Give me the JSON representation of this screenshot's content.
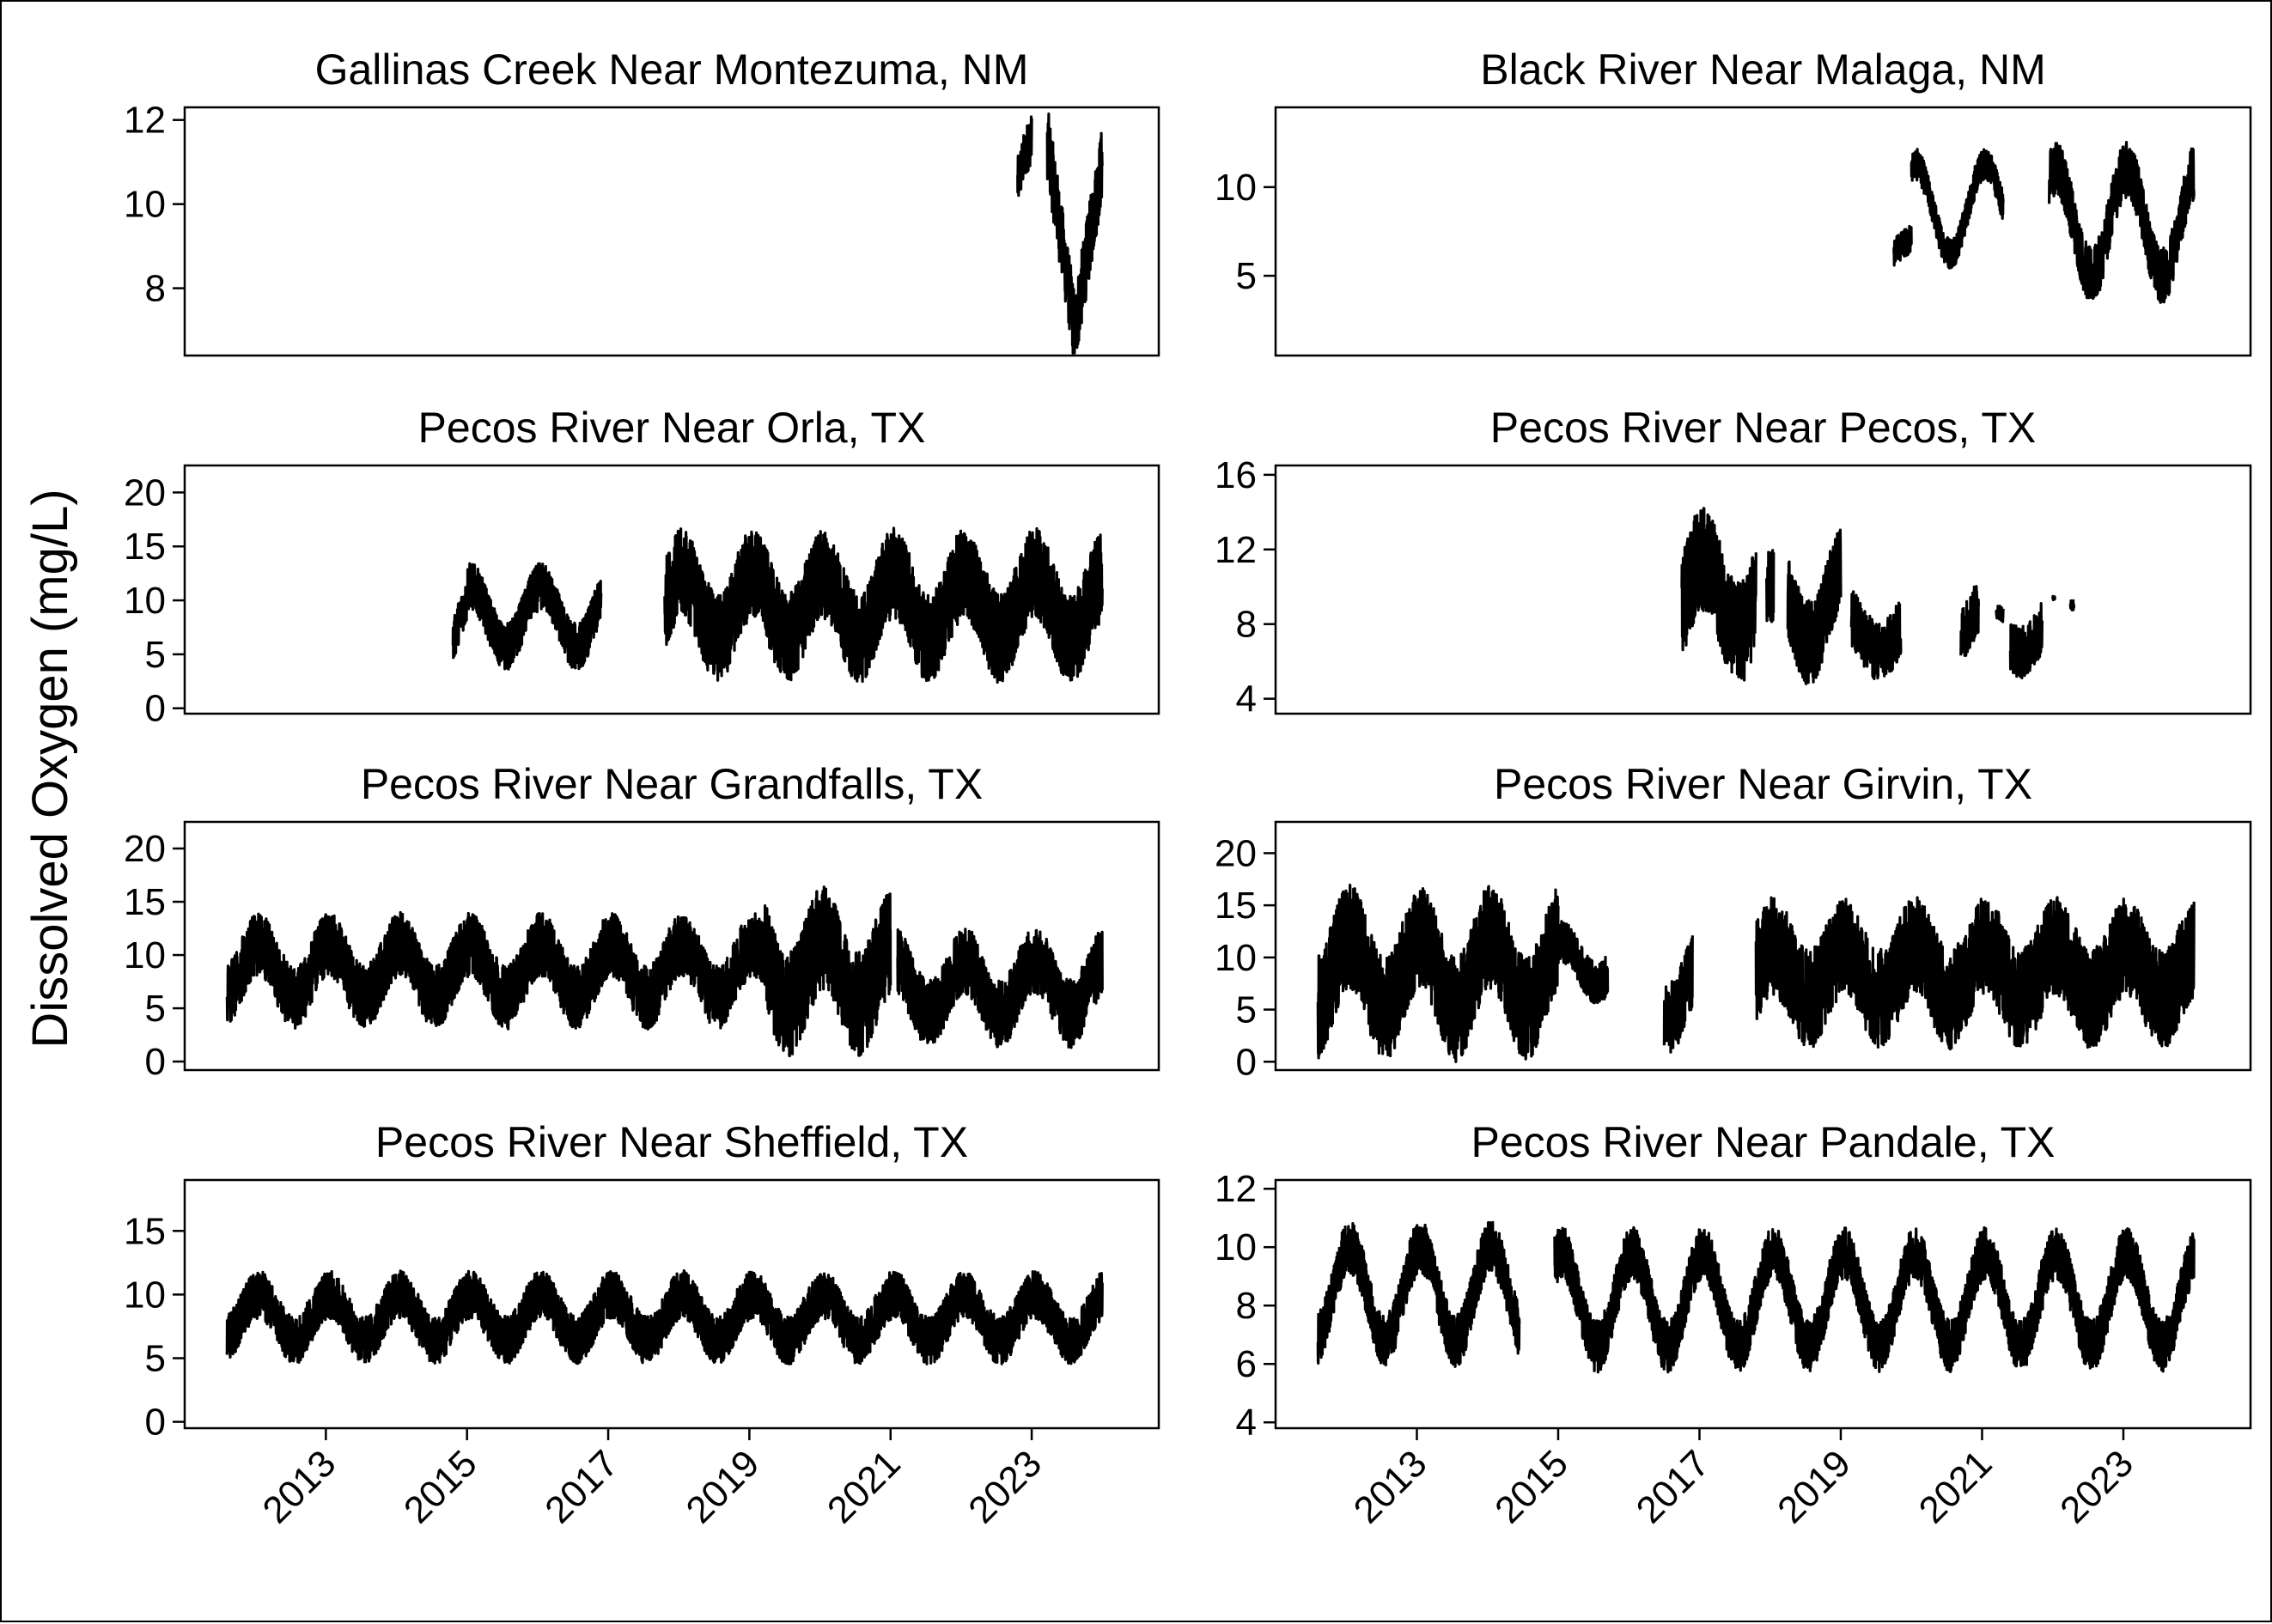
{
  "figure": {
    "ylabel": "Dissolved Oxygen (mg/L)",
    "x_tick_labels": [
      "2013",
      "2015",
      "2017",
      "2019",
      "2021",
      "2023"
    ]
  },
  "chart_data": [
    {
      "type": "line",
      "title": "Gallinas Creek Near Montezuma, NM",
      "ylim": [
        6.4,
        12.3
      ],
      "yticks": [
        8,
        10,
        12
      ],
      "xlim": [
        2011.0,
        2024.8
      ],
      "color": "#000000",
      "segments": [
        {
          "start": 2022.8,
          "end": 2023.0,
          "mean": 10.5,
          "amp": 1.1,
          "noise": 0.6
        },
        {
          "start": 2023.22,
          "end": 2024.0,
          "mean": 9.6,
          "amp": 1.9,
          "noise": 0.9,
          "trend": [
            11.5,
            7.0,
            11.0
          ]
        }
      ]
    },
    {
      "type": "line",
      "title": "Black River Near Malaga, NM",
      "ylim": [
        0.5,
        14.5
      ],
      "yticks": [
        5,
        10
      ],
      "xlim": [
        2011.0,
        2024.8
      ],
      "color": "#000000",
      "segments": [
        {
          "start": 2019.75,
          "end": 2020.0,
          "mean": 6.5,
          "amp": 0.6,
          "noise": 0.8
        },
        {
          "start": 2020.0,
          "end": 2021.3,
          "mean": 8.8,
          "amp": 2.5,
          "noise": 0.9
        },
        {
          "start": 2021.95,
          "end": 2024.0,
          "mean": 8.0,
          "amp": 3.0,
          "noise": 1.6
        }
      ]
    },
    {
      "type": "line",
      "title": "Pecos River Near Orla, TX",
      "ylim": [
        -0.5,
        22.5
      ],
      "yticks": [
        0,
        5,
        10,
        15,
        20
      ],
      "xlim": [
        2011.0,
        2024.8
      ],
      "color": "#000000",
      "segments": [
        {
          "start": 2014.8,
          "end": 2015.0,
          "mean": 6.0,
          "amp": 4.0,
          "noise": 2.0
        },
        {
          "start": 2015.0,
          "end": 2016.9,
          "mean": 8.5,
          "amp": 2.8,
          "noise": 2.2
        },
        {
          "start": 2017.8,
          "end": 2024.0,
          "mean": 9.5,
          "amp": 3.0,
          "noise": 4.2
        }
      ]
    },
    {
      "type": "line",
      "title": "Pecos River Near Pecos, TX",
      "ylim": [
        3.2,
        16.5
      ],
      "yticks": [
        4,
        8,
        12,
        16
      ],
      "xlim": [
        2011.0,
        2024.8
      ],
      "color": "#000000",
      "segments": [
        {
          "start": 2016.75,
          "end": 2017.8,
          "mean": 9.5,
          "amp": 2.0,
          "noise": 2.8
        },
        {
          "start": 2017.95,
          "end": 2018.05,
          "mean": 9.0,
          "amp": 1.0,
          "noise": 2.0
        },
        {
          "start": 2018.25,
          "end": 2019.0,
          "mean": 9.0,
          "amp": 2.0,
          "noise": 2.3
        },
        {
          "start": 2019.15,
          "end": 2019.85,
          "mean": 7.5,
          "amp": 1.0,
          "noise": 1.6
        },
        {
          "start": 2020.7,
          "end": 2020.95,
          "mean": 8.0,
          "amp": 1.0,
          "noise": 1.5
        },
        {
          "start": 2021.2,
          "end": 2021.3,
          "mean": 8.5,
          "amp": 0.4,
          "noise": 0.4
        },
        {
          "start": 2021.4,
          "end": 2021.85,
          "mean": 7.5,
          "amp": 1.0,
          "noise": 1.4
        },
        {
          "start": 2022.0,
          "end": 2022.03,
          "mean": 9.3,
          "amp": 0.1,
          "noise": 0.1
        },
        {
          "start": 2022.25,
          "end": 2022.3,
          "mean": 9.0,
          "amp": 0.2,
          "noise": 0.3
        }
      ]
    },
    {
      "type": "line",
      "title": "Pecos River Near Grandfalls, TX",
      "ylim": [
        -0.8,
        22.5
      ],
      "yticks": [
        0,
        5,
        10,
        15,
        20
      ],
      "xlim": [
        2011.0,
        2024.8
      ],
      "color": "#000000",
      "segments": [
        {
          "start": 2011.6,
          "end": 2019.2,
          "mean": 8.5,
          "amp": 2.5,
          "noise": 3.0
        },
        {
          "start": 2019.2,
          "end": 2021.0,
          "mean": 8.5,
          "amp": 3.0,
          "noise": 5.0
        },
        {
          "start": 2021.1,
          "end": 2024.0,
          "mean": 7.0,
          "amp": 2.5,
          "noise": 3.2
        }
      ]
    },
    {
      "type": "line",
      "title": "Pecos River Near Girvin, TX",
      "ylim": [
        -0.8,
        23.0
      ],
      "yticks": [
        0,
        5,
        10,
        15,
        20
      ],
      "xlim": [
        2011.0,
        2024.8
      ],
      "color": "#000000",
      "segments": [
        {
          "start": 2011.6,
          "end": 2015.0,
          "mean": 8.5,
          "amp": 3.5,
          "noise": 5.0
        },
        {
          "start": 2015.0,
          "end": 2015.7,
          "mean": 9.5,
          "amp": 2.0,
          "noise": 2.0
        },
        {
          "start": 2016.5,
          "end": 2016.9,
          "mean": 7.0,
          "amp": 3.0,
          "noise": 3.5
        },
        {
          "start": 2017.8,
          "end": 2024.0,
          "mean": 8.5,
          "amp": 2.5,
          "noise": 4.8
        }
      ]
    },
    {
      "type": "line",
      "title": "Pecos River Near Sheffield, TX",
      "ylim": [
        -0.5,
        19.0
      ],
      "yticks": [
        0,
        5,
        10,
        15
      ],
      "xlim": [
        2011.0,
        2024.8
      ],
      "color": "#000000",
      "segments": [
        {
          "start": 2011.6,
          "end": 2024.0,
          "mean": 8.2,
          "amp": 1.8,
          "noise": 1.9
        }
      ]
    },
    {
      "type": "line",
      "title": "Pecos River Near Pandale, TX",
      "ylim": [
        3.8,
        12.3
      ],
      "yticks": [
        4,
        6,
        8,
        10,
        12
      ],
      "xlim": [
        2011.0,
        2024.8
      ],
      "color": "#000000",
      "segments": [
        {
          "start": 2011.6,
          "end": 2014.45,
          "mean": 8.4,
          "amp": 1.6,
          "noise": 0.9
        },
        {
          "start": 2014.95,
          "end": 2024.0,
          "mean": 8.2,
          "amp": 1.6,
          "noise": 0.9
        }
      ]
    }
  ]
}
